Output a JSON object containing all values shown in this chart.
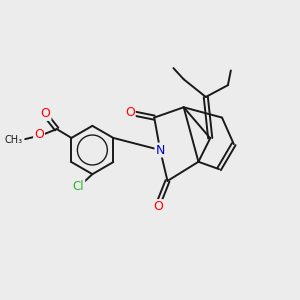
{
  "background_color": "#ececec",
  "bond_color": "#1a1a1a",
  "bond_width": 1.4,
  "atom_colors": {
    "O": "#ff0000",
    "N": "#0000cc",
    "Cl": "#2db32d",
    "C": "#1a1a1a"
  },
  "font_size_atom": 8.5,
  "fig_width": 3.0,
  "fig_height": 3.0,
  "dpi": 100
}
